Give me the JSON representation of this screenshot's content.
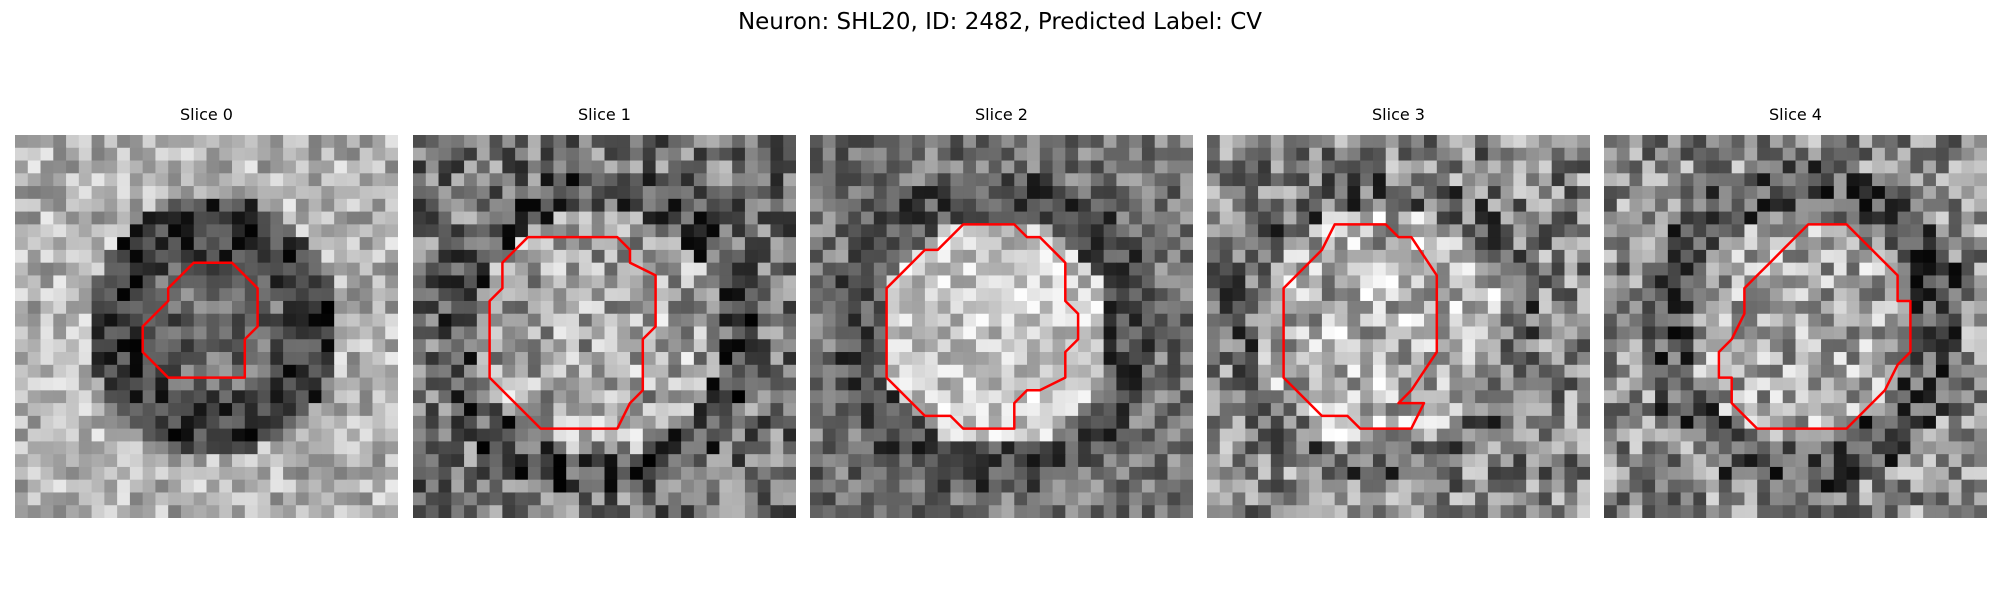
{
  "figure": {
    "title": "Neuron: SHL20, ID: 2482, Predicted Label: CV"
  },
  "panels": [
    {
      "title": "Slice 0"
    },
    {
      "title": "Slice 1"
    },
    {
      "title": "Slice 2"
    },
    {
      "title": "Slice 3"
    },
    {
      "title": "Slice 4"
    }
  ],
  "colors": {
    "background": "#ffffff",
    "contour": "#ff0000",
    "image_colormap": "gray"
  }
}
